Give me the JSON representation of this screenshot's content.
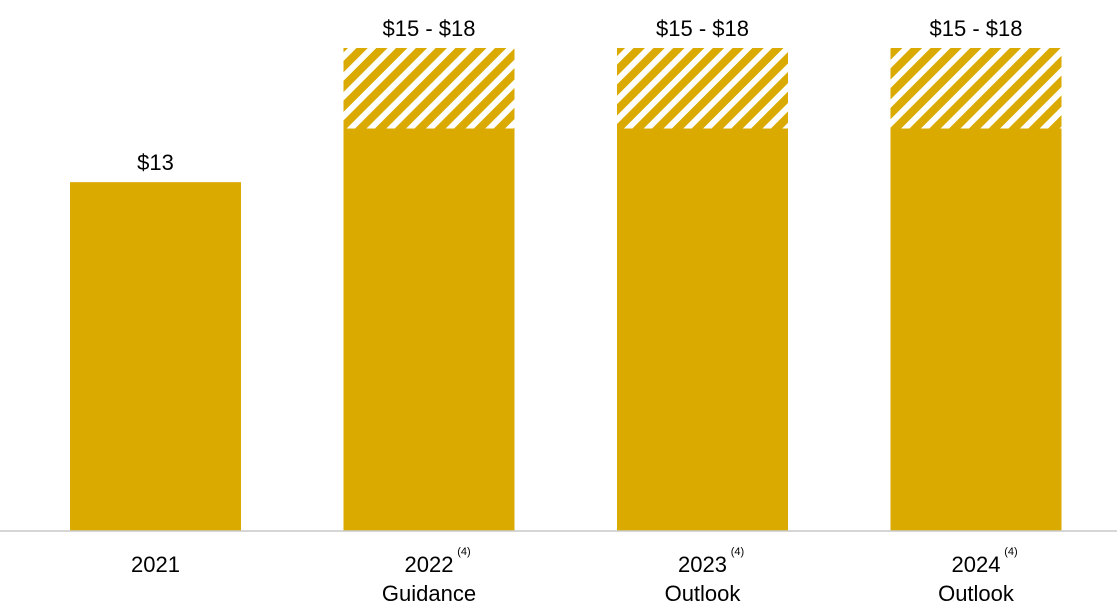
{
  "colors": {
    "bar": "#DAAA00",
    "hatch_light": "#ffffff",
    "axis": "#C9C9C9",
    "text": "#000000"
  },
  "chart_data": {
    "type": "bar",
    "categories": [
      {
        "line1": "2021",
        "line2": "",
        "footnote": ""
      },
      {
        "line1": "2022",
        "line2": "Guidance",
        "footnote": "(4)"
      },
      {
        "line1": "2023",
        "line2": "Outlook",
        "footnote": "(4)"
      },
      {
        "line1": "2024",
        "line2": "Outlook",
        "footnote": "(4)"
      }
    ],
    "values": [
      {
        "low": 13,
        "high": 13
      },
      {
        "low": 15,
        "high": 18
      },
      {
        "low": 15,
        "high": 18
      },
      {
        "low": 15,
        "high": 18
      }
    ],
    "data_labels": [
      "$13",
      "$15 - $18",
      "$15 - $18",
      "$15 - $18"
    ],
    "ylim": [
      0,
      18
    ],
    "title": "",
    "xlabel": "",
    "ylabel": "",
    "grid": false,
    "legend": "none"
  }
}
